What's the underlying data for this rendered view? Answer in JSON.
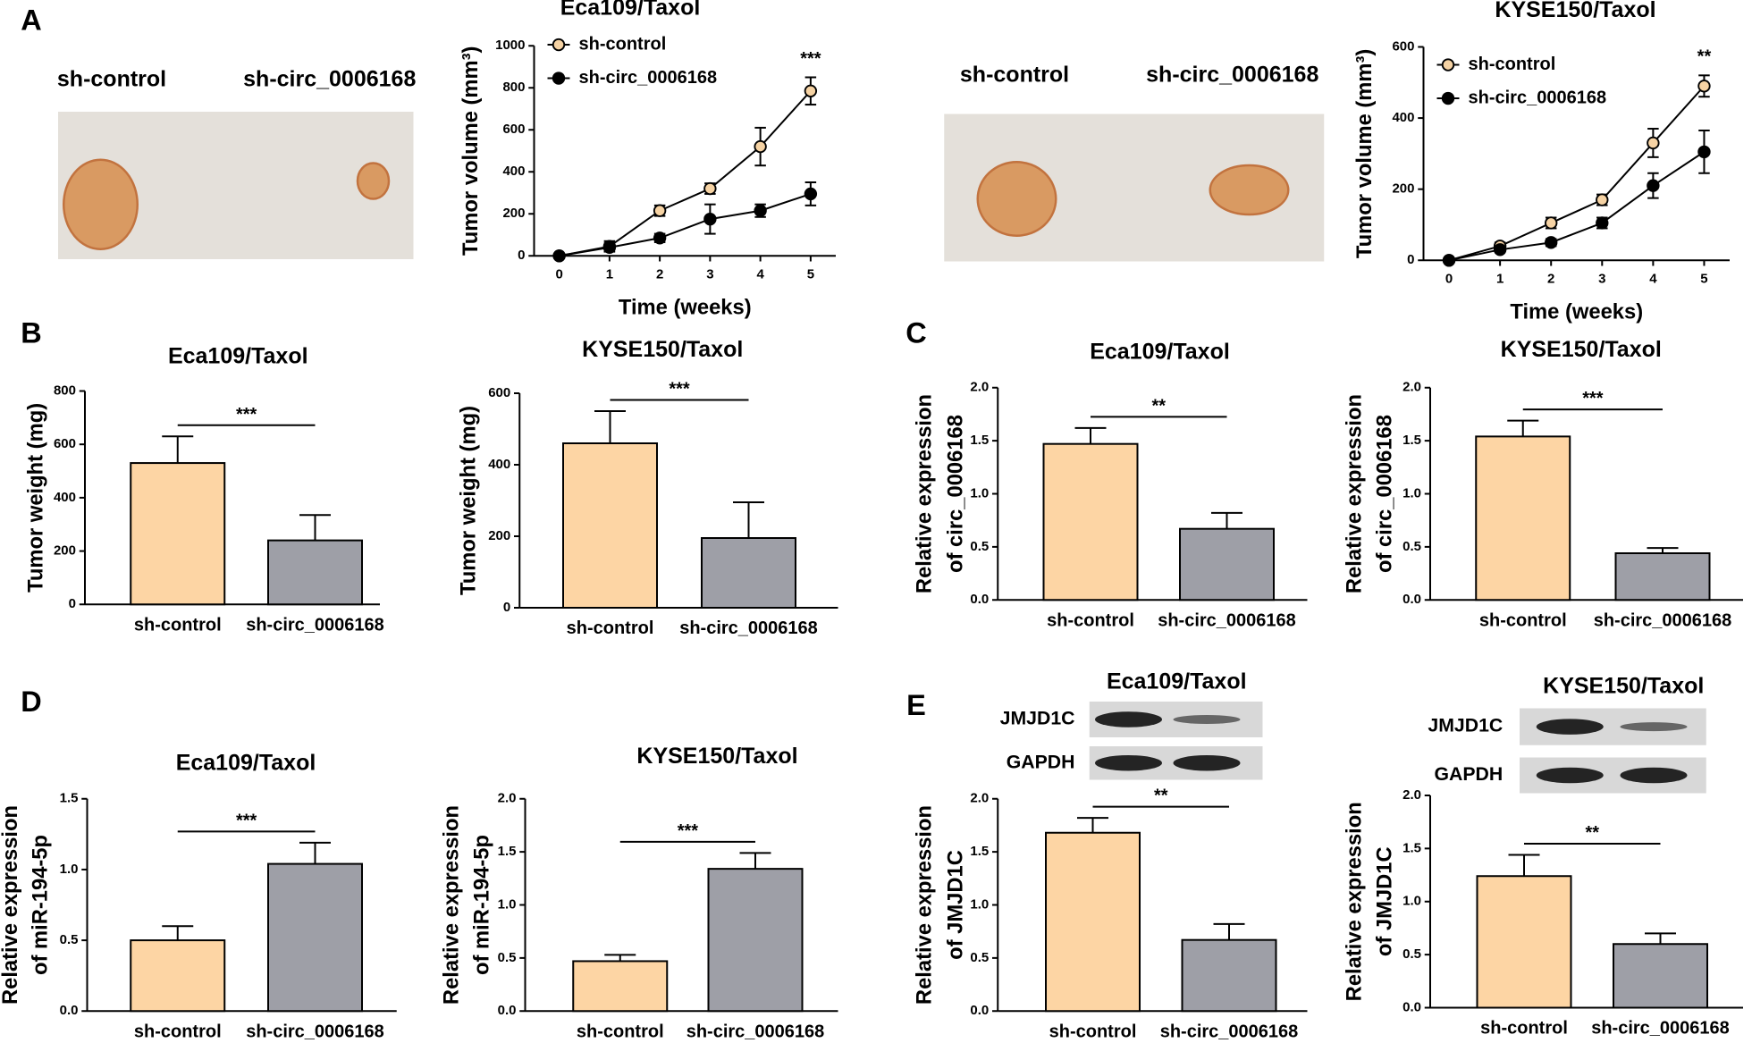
{
  "panels": [
    "A",
    "B",
    "C",
    "D",
    "E"
  ],
  "photos": [
    {
      "labels": [
        "sh-control",
        "sh-circ_0006168"
      ]
    },
    {
      "labels": [
        "sh-control",
        "sh-circ_0006168"
      ]
    }
  ],
  "blots": [
    {
      "labels": [
        "JMJD1C",
        "GAPDH"
      ]
    },
    {
      "labels": [
        "JMJD1C",
        "GAPDH"
      ]
    }
  ],
  "chart_data": [
    {
      "type": "line",
      "title": "Eca109/Taxol",
      "xlabel": "Time (weeks)",
      "ylabel": "Tumor volume (mm³)",
      "x": [
        0,
        1,
        2,
        3,
        4,
        5
      ],
      "xlim": [
        -0.5,
        5.5
      ],
      "xticks": [
        0,
        1,
        2,
        3,
        4,
        5
      ],
      "ylim": [
        0,
        1000
      ],
      "yticks": [
        0,
        200,
        400,
        600,
        800,
        1000
      ],
      "series": [
        {
          "name": "sh-control",
          "color": "#f6d3a4",
          "values": [
            0,
            45,
            215,
            320,
            520,
            785
          ],
          "errors": [
            5,
            25,
            25,
            25,
            90,
            65
          ]
        },
        {
          "name": "sh-circ_0006168",
          "color": "#000000",
          "values": [
            0,
            40,
            85,
            175,
            215,
            295
          ],
          "errors": [
            5,
            20,
            20,
            70,
            30,
            55
          ]
        }
      ],
      "annotation": "***"
    },
    {
      "type": "line",
      "title": "KYSE150/Taxol",
      "xlabel": "Time (weeks)",
      "ylabel": "Tumor volume (mm³)",
      "x": [
        0,
        1,
        2,
        3,
        4,
        5
      ],
      "xlim": [
        -0.5,
        5.5
      ],
      "xticks": [
        0,
        1,
        2,
        3,
        4,
        5
      ],
      "ylim": [
        0,
        600
      ],
      "yticks": [
        0,
        200,
        400,
        600
      ],
      "series": [
        {
          "name": "sh-control",
          "color": "#f6d3a4",
          "values": [
            0,
            40,
            105,
            170,
            330,
            490
          ],
          "errors": [
            5,
            10,
            15,
            15,
            40,
            30
          ]
        },
        {
          "name": "sh-circ_0006168",
          "color": "#000000",
          "values": [
            0,
            30,
            50,
            105,
            210,
            305
          ],
          "errors": [
            5,
            5,
            10,
            15,
            35,
            60
          ]
        }
      ],
      "annotation": "**"
    },
    {
      "type": "bar",
      "title": "Eca109/Taxol",
      "ylabel": [
        "Tumor weight (mg)"
      ],
      "categories": [
        "sh-control",
        "sh-circ_0006168"
      ],
      "values": [
        530,
        240
      ],
      "errors": [
        100,
        95
      ],
      "colors": [
        "#fdd5a4",
        "#9e9fa7"
      ],
      "ylim": [
        0,
        800
      ],
      "yticks": [
        0,
        200,
        400,
        600,
        800
      ],
      "annotation": "***"
    },
    {
      "type": "bar",
      "title": "KYSE150/Taxol",
      "ylabel": [
        "Tumor weight (mg)"
      ],
      "categories": [
        "sh-control",
        "sh-circ_0006168"
      ],
      "values": [
        460,
        195
      ],
      "errors": [
        90,
        100
      ],
      "colors": [
        "#fdd5a4",
        "#9e9fa7"
      ],
      "ylim": [
        0,
        600
      ],
      "yticks": [
        0,
        200,
        400,
        600
      ],
      "annotation": "***"
    },
    {
      "type": "bar",
      "title": "Eca109/Taxol",
      "ylabel": [
        "Relative expression",
        "of circ_0006168"
      ],
      "categories": [
        "sh-control",
        "sh-circ_0006168"
      ],
      "values": [
        1.47,
        0.67
      ],
      "errors": [
        0.15,
        0.15
      ],
      "colors": [
        "#fdd5a4",
        "#9e9fa7"
      ],
      "ylim": [
        0,
        2
      ],
      "yticks": [
        {
          "value": 0,
          "label": "0.0"
        },
        0.5,
        {
          "value": 1,
          "label": "1.0"
        },
        1.5,
        {
          "value": 2,
          "label": "2.0"
        }
      ],
      "annotation": "**"
    },
    {
      "type": "bar",
      "title": "KYSE150/Taxol",
      "ylabel": [
        "Relative expression",
        "of circ_0006168"
      ],
      "categories": [
        "sh-control",
        "sh-circ_0006168"
      ],
      "values": [
        1.54,
        0.44
      ],
      "errors": [
        0.15,
        0.05
      ],
      "colors": [
        "#fdd5a4",
        "#9e9fa7"
      ],
      "ylim": [
        0,
        2
      ],
      "yticks": [
        {
          "value": 0,
          "label": "0.0"
        },
        0.5,
        {
          "value": 1,
          "label": "1.0"
        },
        1.5,
        {
          "value": 2,
          "label": "2.0"
        }
      ],
      "annotation": "***"
    },
    {
      "type": "bar",
      "title": "Eca109/Taxol",
      "ylabel": [
        "Relative expression",
        "of miR-194-5p"
      ],
      "categories": [
        "sh-control",
        "sh-circ_0006168"
      ],
      "values": [
        0.5,
        1.04
      ],
      "errors": [
        0.1,
        0.15
      ],
      "colors": [
        "#fdd5a4",
        "#9e9fa7"
      ],
      "ylim": [
        0,
        1.5
      ],
      "yticks": [
        {
          "value": 0,
          "label": "0.0"
        },
        0.5,
        {
          "value": 1,
          "label": "1.0"
        },
        1.5
      ],
      "annotation": "***"
    },
    {
      "type": "bar",
      "title": "KYSE150/Taxol",
      "ylabel": [
        "Relative expression",
        "of miR-194-5p"
      ],
      "categories": [
        "sh-control",
        "sh-circ_0006168"
      ],
      "values": [
        0.47,
        1.34
      ],
      "errors": [
        0.06,
        0.15
      ],
      "colors": [
        "#fdd5a4",
        "#9e9fa7"
      ],
      "ylim": [
        0,
        2
      ],
      "yticks": [
        {
          "value": 0,
          "label": "0.0"
        },
        0.5,
        {
          "value": 1,
          "label": "1.0"
        },
        1.5,
        {
          "value": 2,
          "label": "2.0"
        }
      ],
      "annotation": "***"
    },
    {
      "type": "bar",
      "title": "Eca109/Taxol",
      "ylabel": [
        "Relative expression",
        "of JMJD1C"
      ],
      "categories": [
        "sh-control",
        "sh-circ_0006168"
      ],
      "values": [
        1.68,
        0.67
      ],
      "errors": [
        0.14,
        0.15
      ],
      "colors": [
        "#fdd5a4",
        "#9e9fa7"
      ],
      "ylim": [
        0,
        2
      ],
      "yticks": [
        {
          "value": 0,
          "label": "0.0"
        },
        0.5,
        {
          "value": 1,
          "label": "1.0"
        },
        1.5,
        {
          "value": 2,
          "label": "2.0"
        }
      ],
      "annotation": "**"
    },
    {
      "type": "bar",
      "title": "KYSE150/Taxol",
      "ylabel": [
        "Relative expression",
        "of JMJD1C"
      ],
      "categories": [
        "sh-control",
        "sh-circ_0006168"
      ],
      "values": [
        1.24,
        0.6
      ],
      "errors": [
        0.2,
        0.1
      ],
      "colors": [
        "#fdd5a4",
        "#9e9fa7"
      ],
      "ylim": [
        0,
        2
      ],
      "yticks": [
        {
          "value": 0,
          "label": "0.0"
        },
        0.5,
        {
          "value": 1,
          "label": "1.0"
        },
        1.5,
        {
          "value": 2,
          "label": "2.0"
        }
      ],
      "annotation": "**"
    }
  ]
}
